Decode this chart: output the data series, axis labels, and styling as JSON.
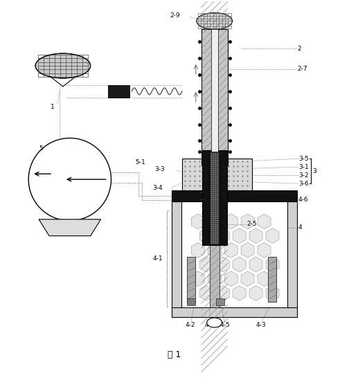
{
  "title": "図 1",
  "bg_color": "#ffffff",
  "line_color": "#000000",
  "label_fontsize": 6.5,
  "title_fontsize": 9
}
